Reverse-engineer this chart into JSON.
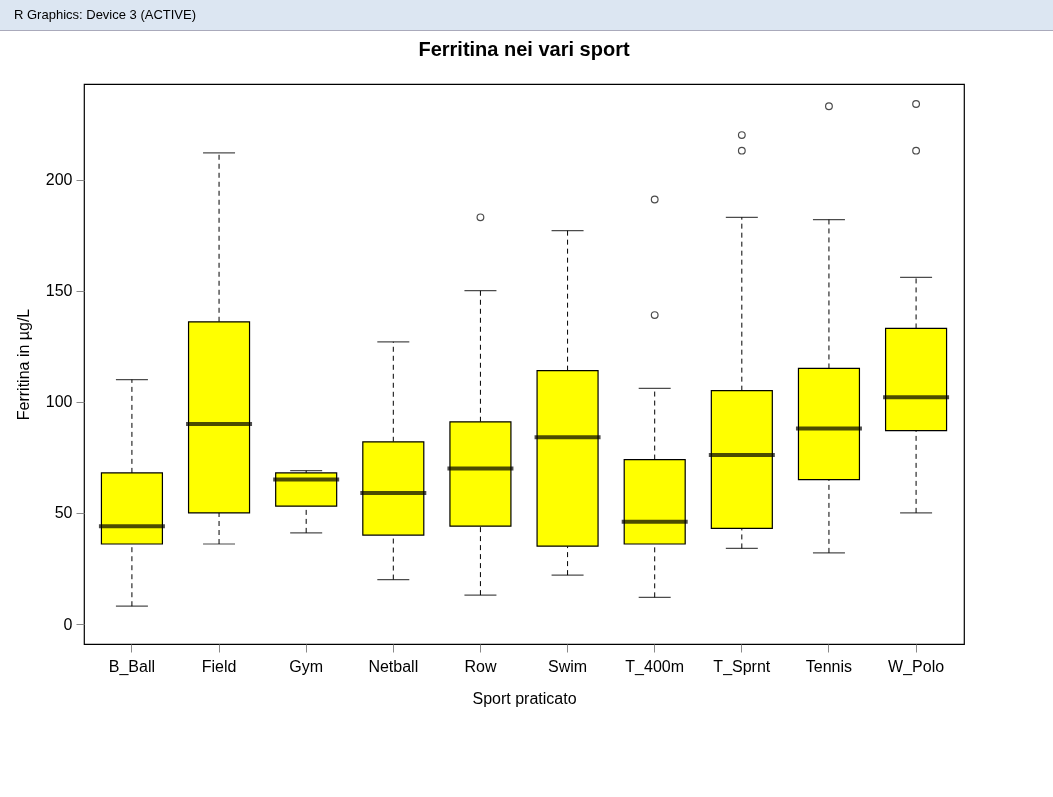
{
  "chart_data": {
    "type": "box",
    "title": "Ferritina nei vari sport",
    "xlabel": "Sport praticato",
    "ylabel": "Ferritina in µg/L",
    "annotations": [
      "R Graphics: Device 3 (ACTIVE)"
    ],
    "color": "#ffff00",
    "line_style": "dashed",
    "marker": "circle",
    "categories": [
      "B_Ball",
      "Field",
      "Gym",
      "Netball",
      "Row",
      "Swim",
      "T_400m",
      "T_Sprnt",
      "Tennis",
      "W_Polo"
    ],
    "boxes": [
      {
        "low": 8,
        "q1": 36,
        "median": 44,
        "q3": 68,
        "high": 110
      },
      {
        "low": 36,
        "q1": 50,
        "median": 90,
        "q3": 136,
        "high": 212
      },
      {
        "low": 41,
        "q1": 53,
        "median": 65,
        "q3": 68,
        "high": 69
      },
      {
        "low": 20,
        "q1": 40,
        "median": 59,
        "q3": 82,
        "high": 127
      },
      {
        "low": 13,
        "q1": 44,
        "median": 70,
        "q3": 91,
        "high": 150,
        "outliers": [
          183
        ]
      },
      {
        "low": 22,
        "q1": 35,
        "median": 84,
        "q3": 114,
        "high": 177
      },
      {
        "low": 12,
        "q1": 36,
        "median": 46,
        "q3": 74,
        "high": 106,
        "outliers": [
          191,
          139
        ]
      },
      {
        "low": 34,
        "q1": 43,
        "median": 76,
        "q3": 105,
        "high": 183,
        "outliers": [
          220,
          213
        ]
      },
      {
        "low": 32,
        "q1": 65,
        "median": 88,
        "q3": 115,
        "high": 182,
        "outliers": [
          233
        ]
      },
      {
        "low": 50,
        "q1": 87,
        "median": 102,
        "q3": 133,
        "high": 156,
        "outliers": [
          234,
          213
        ]
      }
    ],
    "ylim": [
      -9,
      243
    ],
    "yticks": [
      0,
      50,
      100,
      150,
      200
    ]
  }
}
